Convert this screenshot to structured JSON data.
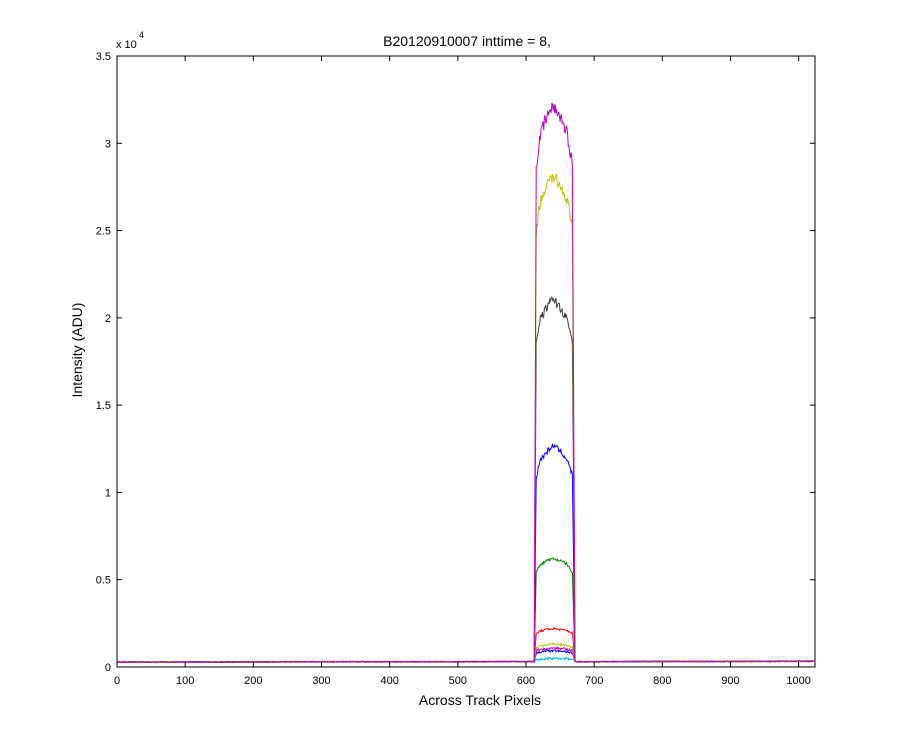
{
  "chart_data": {
    "type": "line",
    "title": "B20120910007 inttime = 8,",
    "xlabel": "Across Track Pixels",
    "ylabel": "Intensity (ADU)",
    "y_exponent_base": "x 10",
    "y_exponent_power": "4",
    "xlim": [
      0,
      1024
    ],
    "ylim": [
      0,
      35000
    ],
    "x_ticks": [
      0,
      100,
      200,
      300,
      400,
      500,
      600,
      700,
      800,
      900,
      1000
    ],
    "x_tick_labels": [
      "0",
      "100",
      "200",
      "300",
      "400",
      "500",
      "600",
      "700",
      "800",
      "900",
      "1000"
    ],
    "y_ticks": [
      0,
      5000,
      10000,
      15000,
      20000,
      25000,
      30000,
      35000
    ],
    "y_tick_labels": [
      "0",
      "0.5",
      "1",
      "1.5",
      "2",
      "2.5",
      "3",
      "3.5"
    ],
    "grid": false,
    "legend": "none",
    "baseline": 280,
    "series": [
      {
        "color": "#00bfbf",
        "x": [
          0,
          100,
          200,
          300,
          400,
          500,
          600,
          612,
          615,
          620,
          630,
          640,
          650,
          660,
          668,
          672,
          675,
          680,
          700,
          800,
          900,
          1000,
          1024
        ],
        "y": [
          280,
          280,
          290,
          300,
          300,
          300,
          310,
          310,
          420,
          450,
          480,
          500,
          490,
          470,
          430,
          330,
          300,
          300,
          300,
          320,
          320,
          330,
          330
        ]
      },
      {
        "color": "#0000ff",
        "x": [
          0,
          100,
          200,
          300,
          400,
          500,
          600,
          612,
          615,
          620,
          630,
          640,
          650,
          660,
          668,
          672,
          675,
          680,
          700,
          800,
          900,
          1000,
          1024
        ],
        "y": [
          280,
          280,
          290,
          300,
          300,
          300,
          310,
          310,
          800,
          850,
          900,
          920,
          900,
          870,
          820,
          330,
          300,
          300,
          300,
          320,
          320,
          330,
          330
        ]
      },
      {
        "color": "#bf00bf",
        "x": [
          0,
          100,
          200,
          300,
          400,
          500,
          600,
          612,
          615,
          620,
          630,
          640,
          650,
          660,
          668,
          672,
          675,
          680,
          700,
          800,
          900,
          1000,
          1024
        ],
        "y": [
          280,
          280,
          290,
          300,
          300,
          300,
          310,
          310,
          950,
          1000,
          1050,
          1080,
          1060,
          1020,
          960,
          330,
          300,
          300,
          300,
          320,
          320,
          330,
          330
        ]
      },
      {
        "color": "#bfbf00",
        "x": [
          0,
          100,
          200,
          300,
          400,
          500,
          600,
          612,
          615,
          620,
          630,
          640,
          650,
          660,
          668,
          672,
          675,
          680,
          700,
          800,
          900,
          1000,
          1024
        ],
        "y": [
          280,
          280,
          290,
          300,
          300,
          300,
          310,
          310,
          1100,
          1200,
          1280,
          1320,
          1280,
          1230,
          1150,
          330,
          300,
          300,
          300,
          320,
          320,
          330,
          330
        ]
      },
      {
        "color": "#ff0000",
        "x": [
          0,
          100,
          200,
          300,
          400,
          500,
          600,
          612,
          615,
          620,
          630,
          640,
          650,
          660,
          668,
          672,
          675,
          680,
          700,
          800,
          900,
          1000,
          1024
        ],
        "y": [
          280,
          280,
          290,
          300,
          300,
          300,
          310,
          310,
          1900,
          2050,
          2150,
          2200,
          2150,
          2080,
          1950,
          330,
          300,
          300,
          300,
          320,
          320,
          330,
          330
        ]
      },
      {
        "color": "#008000",
        "x": [
          0,
          100,
          200,
          300,
          400,
          500,
          600,
          612,
          615,
          620,
          630,
          640,
          650,
          660,
          668,
          672,
          675,
          680,
          700,
          800,
          900,
          1000,
          1024
        ],
        "y": [
          280,
          280,
          290,
          300,
          300,
          300,
          310,
          310,
          5400,
          5800,
          6100,
          6200,
          6100,
          5900,
          5400,
          330,
          300,
          300,
          300,
          320,
          320,
          330,
          330
        ]
      },
      {
        "color": "#0000ff",
        "x": [
          0,
          100,
          200,
          300,
          400,
          500,
          600,
          612,
          615,
          620,
          630,
          640,
          650,
          660,
          668,
          672,
          675,
          680,
          700,
          800,
          900,
          1000,
          1024
        ],
        "y": [
          280,
          280,
          290,
          300,
          300,
          300,
          310,
          310,
          10800,
          11800,
          12300,
          12700,
          12400,
          11900,
          11000,
          330,
          300,
          300,
          300,
          320,
          320,
          330,
          330
        ]
      },
      {
        "color": "#404040",
        "x": [
          0,
          100,
          200,
          300,
          400,
          500,
          600,
          612,
          615,
          620,
          630,
          640,
          650,
          660,
          668,
          672,
          675,
          680,
          700,
          800,
          900,
          1000,
          1024
        ],
        "y": [
          280,
          280,
          290,
          300,
          300,
          300,
          310,
          310,
          18500,
          19800,
          20600,
          21100,
          20600,
          19900,
          18700,
          330,
          300,
          300,
          300,
          320,
          320,
          330,
          330
        ]
      },
      {
        "color": "#bfbf00",
        "x": [
          0,
          100,
          200,
          300,
          400,
          500,
          600,
          612,
          615,
          620,
          630,
          640,
          650,
          660,
          668,
          672,
          675,
          680,
          700,
          800,
          900,
          1000,
          1024
        ],
        "y": [
          280,
          280,
          290,
          300,
          300,
          300,
          310,
          310,
          24800,
          26500,
          27600,
          28100,
          27600,
          26800,
          25200,
          330,
          300,
          300,
          300,
          320,
          320,
          330,
          330
        ]
      },
      {
        "color": "#bf00bf",
        "x": [
          0,
          100,
          200,
          300,
          400,
          500,
          600,
          612,
          615,
          620,
          630,
          640,
          650,
          660,
          668,
          672,
          675,
          680,
          700,
          800,
          900,
          1000,
          1024
        ],
        "y": [
          280,
          280,
          290,
          300,
          300,
          300,
          310,
          310,
          28500,
          30300,
          31500,
          32100,
          31600,
          30600,
          28800,
          330,
          300,
          300,
          300,
          320,
          320,
          330,
          330
        ]
      }
    ]
  }
}
